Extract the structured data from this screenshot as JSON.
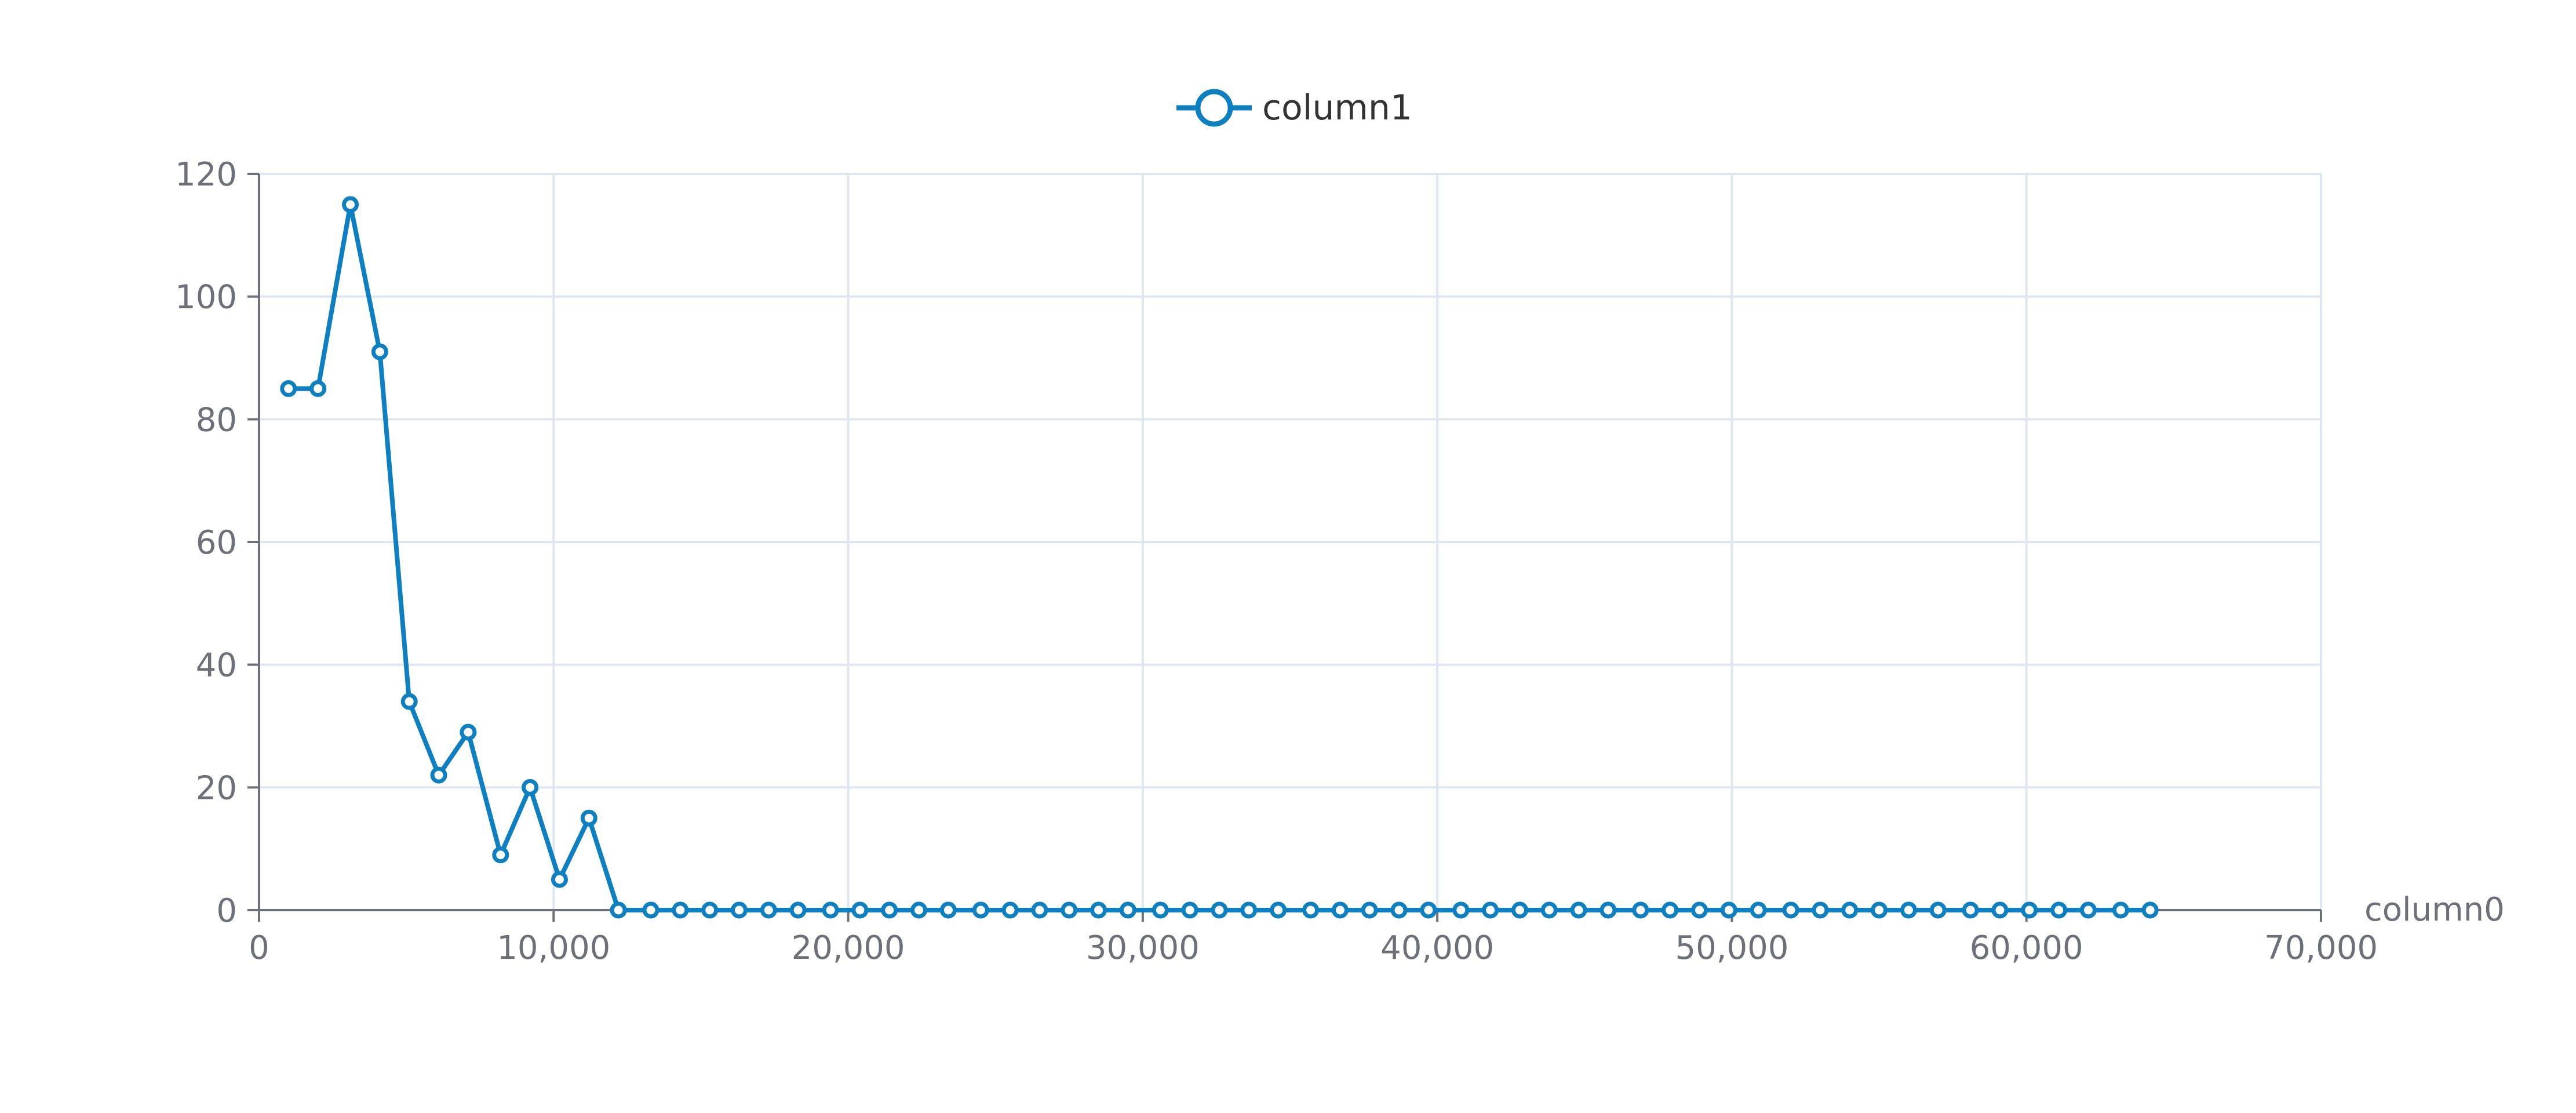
{
  "chart_data": {
    "type": "line",
    "xlabel": "column0",
    "ylabel": "",
    "xlim": [
      0,
      70000
    ],
    "ylim": [
      0,
      120
    ],
    "x_ticks": [
      0,
      10000,
      20000,
      30000,
      40000,
      50000,
      60000,
      70000
    ],
    "x_tick_labels": [
      "0",
      "10,000",
      "20,000",
      "30,000",
      "40,000",
      "50,000",
      "60,000",
      "70,000"
    ],
    "y_ticks": [
      0,
      20,
      40,
      60,
      80,
      100,
      120
    ],
    "y_tick_labels": [
      "0",
      "20",
      "40",
      "60",
      "80",
      "100",
      "120"
    ],
    "grid": true,
    "legend_position": "top-center",
    "series": [
      {
        "name": "column1",
        "color": "#0e7fc0",
        "x": [
          1000,
          2000,
          3100,
          4100,
          5100,
          6100,
          7100,
          8200,
          9200,
          10200,
          11200,
          12200,
          13300,
          14300,
          15300,
          16300,
          17300,
          18300,
          19400,
          20400,
          21400,
          22400,
          23400,
          24500,
          25500,
          26500,
          27500,
          28500,
          29500,
          30600,
          31600,
          32600,
          33600,
          34600,
          35700,
          36700,
          37700,
          38700,
          39700,
          40800,
          41800,
          42800,
          43800,
          44800,
          45800,
          46900,
          47900,
          48900,
          49900,
          50900,
          52000,
          53000,
          54000,
          55000,
          56000,
          57000,
          58100,
          59100,
          60100,
          61100,
          62100,
          63200,
          64200
        ],
        "values": [
          85,
          85,
          115,
          91,
          34,
          22,
          29,
          9,
          20,
          5,
          15,
          0,
          0,
          0,
          0,
          0,
          0,
          0,
          0,
          0,
          0,
          0,
          0,
          0,
          0,
          0,
          0,
          0,
          0,
          0,
          0,
          0,
          0,
          0,
          0,
          0,
          0,
          0,
          0,
          0,
          0,
          0,
          0,
          0,
          0,
          0,
          0,
          0,
          0,
          0,
          0,
          0,
          0,
          0,
          0,
          0,
          0,
          0,
          0,
          0,
          0,
          0,
          0
        ]
      }
    ]
  }
}
